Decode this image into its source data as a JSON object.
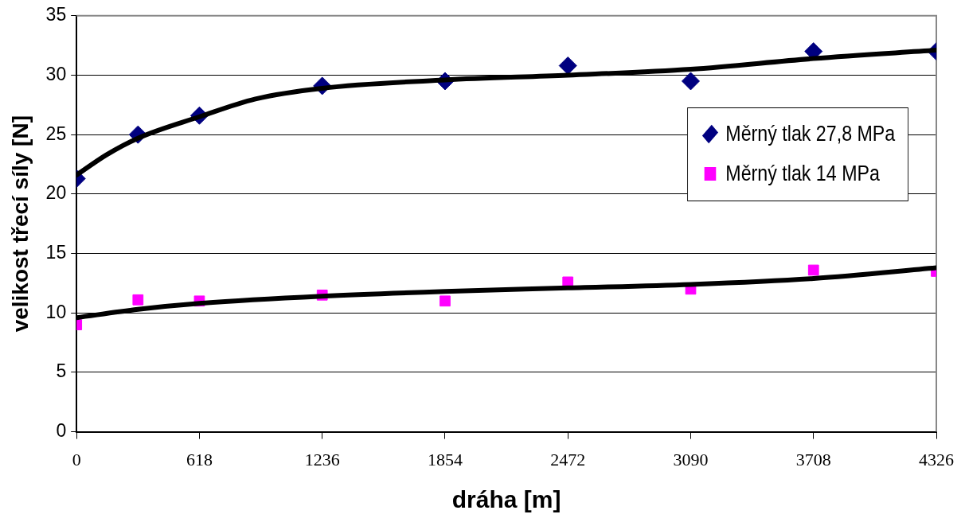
{
  "chart_data": {
    "type": "scatter",
    "xlabel": "dráha [m]",
    "ylabel": "velikost třecí síly [N]",
    "xlim": [
      0,
      4326
    ],
    "xticks": [
      0,
      618,
      1236,
      1854,
      2472,
      3090,
      3708,
      4326
    ],
    "ylim": [
      0,
      35
    ],
    "yticks": [
      0,
      5,
      10,
      15,
      20,
      25,
      30,
      35
    ],
    "grid": "y",
    "legend": "right",
    "series": [
      {
        "name": "Měrný tlak 27,8 MPa",
        "color": "#000080",
        "marker": "diamond",
        "x": [
          0,
          309,
          618,
          1236,
          1854,
          2472,
          3090,
          3708,
          4326
        ],
        "values": [
          21.3,
          25.0,
          26.6,
          29.1,
          29.5,
          30.8,
          29.5,
          32.0,
          32.0
        ]
      },
      {
        "name": "Měrný tlak 14 MPa",
        "color": "#ff00ff",
        "marker": "square",
        "x": [
          0,
          309,
          618,
          1236,
          1854,
          2472,
          3090,
          3708,
          4326
        ],
        "values": [
          9.0,
          11.1,
          11.0,
          11.5,
          11.0,
          12.6,
          12.0,
          13.6,
          13.5
        ]
      },
      {
        "type": "line",
        "color": "#000000",
        "marker": "none",
        "line_style": "solid",
        "x": [
          0,
          150,
          309,
          618,
          900,
          1236,
          1854,
          2472,
          3090,
          3708,
          4326
        ],
        "values": [
          21.6,
          23.3,
          24.7,
          26.5,
          28.0,
          28.9,
          29.6,
          30.0,
          30.5,
          31.4,
          32.1
        ]
      },
      {
        "type": "line",
        "color": "#000000",
        "marker": "none",
        "line_style": "solid",
        "x": [
          0,
          309,
          618,
          1236,
          1854,
          2472,
          3090,
          3708,
          4326
        ],
        "values": [
          9.6,
          10.3,
          10.8,
          11.4,
          11.8,
          12.1,
          12.4,
          12.9,
          13.8
        ]
      }
    ]
  }
}
